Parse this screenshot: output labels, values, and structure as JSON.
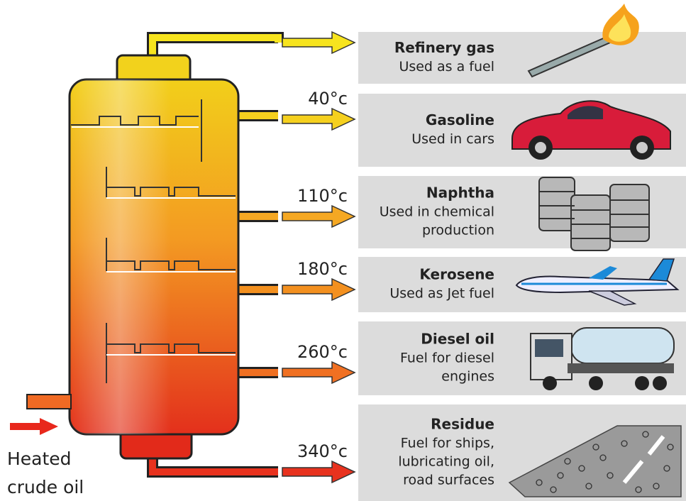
{
  "input": {
    "label_lines": [
      "Heated",
      "crude oil"
    ]
  },
  "fractions": [
    {
      "name": "Refinery gas",
      "use": [
        "Used as a fuel"
      ]
    },
    {
      "name": "Gasoline",
      "use": [
        "Used in cars"
      ],
      "temperature": "40°c"
    },
    {
      "name": "Naphtha",
      "use": [
        "Used in chemical",
        "production"
      ],
      "temperature": "110°c"
    },
    {
      "name": "Kerosene",
      "use": [
        "Used as Jet fuel"
      ],
      "temperature": "180°c"
    },
    {
      "name": "Diesel oil",
      "use": [
        "Fuel for diesel",
        "engines"
      ],
      "temperature": "260°c"
    },
    {
      "name": "Residue",
      "use": [
        "Fuel for ships,",
        "lubricating oil,",
        "road surfaces"
      ],
      "temperature": "340°c"
    }
  ]
}
